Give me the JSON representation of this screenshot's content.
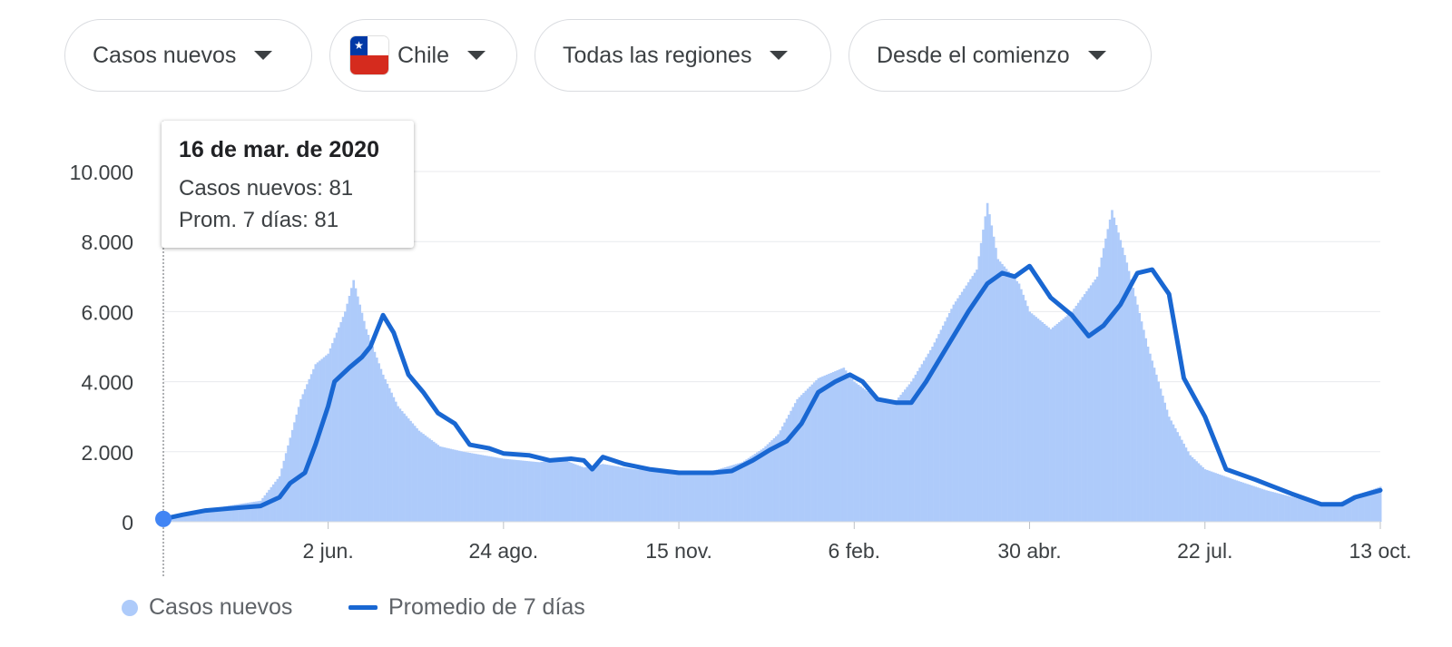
{
  "filters": {
    "metric": "Casos nuevos",
    "country": "Chile",
    "region": "Todas las regiones",
    "range": "Desde el comienzo"
  },
  "tooltip": {
    "date": "16 de mar. de 2020",
    "cases_label": "Casos nuevos",
    "cases_value": "81",
    "avg_label": "Prom. 7 días",
    "avg_value": "81"
  },
  "legend": {
    "cases": "Casos nuevos",
    "avg": "Promedio de 7 días"
  },
  "colors": {
    "bars": "#aecbfa",
    "line": "#1967d2",
    "marker": "#4285f4",
    "grid": "#e8eaed"
  },
  "chart_data": {
    "type": "bar",
    "title": "",
    "xlabel": "",
    "ylabel": "",
    "ylim": [
      0,
      10000
    ],
    "yticks": [
      0,
      2000,
      4000,
      6000,
      8000,
      10000
    ],
    "ytick_labels": [
      "0",
      "2.000",
      "4.000",
      "6.000",
      "8.000",
      "10.000"
    ],
    "xticks": [
      {
        "date": "2020-06-02",
        "label": "2 jun."
      },
      {
        "date": "2020-08-24",
        "label": "24 ago."
      },
      {
        "date": "2020-11-15",
        "label": "15 nov."
      },
      {
        "date": "2021-02-06",
        "label": "6 feb."
      },
      {
        "date": "2021-04-30",
        "label": "30 abr."
      },
      {
        "date": "2021-07-22",
        "label": "22 jul."
      },
      {
        "date": "2021-10-13",
        "label": "13 oct."
      }
    ],
    "x_start": "2020-03-16",
    "x_end": "2021-10-13",
    "highlight": {
      "date": "2020-03-16",
      "value": 81
    },
    "series": [
      {
        "name": "Casos nuevos",
        "type": "bar",
        "points": [
          [
            "2020-03-16",
            81
          ],
          [
            "2020-04-01",
            300
          ],
          [
            "2020-04-15",
            450
          ],
          [
            "2020-05-01",
            600
          ],
          [
            "2020-05-10",
            1300
          ],
          [
            "2020-05-20",
            3500
          ],
          [
            "2020-05-27",
            4500
          ],
          [
            "2020-06-02",
            4800
          ],
          [
            "2020-06-10",
            6000
          ],
          [
            "2020-06-14",
            6900
          ],
          [
            "2020-06-20",
            5500
          ],
          [
            "2020-06-28",
            4200
          ],
          [
            "2020-07-05",
            3300
          ],
          [
            "2020-07-15",
            2600
          ],
          [
            "2020-07-25",
            2150
          ],
          [
            "2020-08-05",
            2000
          ],
          [
            "2020-08-24",
            1800
          ],
          [
            "2020-09-10",
            1700
          ],
          [
            "2020-09-20",
            1800
          ],
          [
            "2020-10-01",
            1550
          ],
          [
            "2020-10-10",
            1650
          ],
          [
            "2020-10-25",
            1500
          ],
          [
            "2020-11-15",
            1400
          ],
          [
            "2020-12-01",
            1450
          ],
          [
            "2020-12-15",
            1700
          ],
          [
            "2020-12-25",
            2100
          ],
          [
            "2021-01-01",
            2500
          ],
          [
            "2021-01-10",
            3500
          ],
          [
            "2021-01-20",
            4100
          ],
          [
            "2021-02-01",
            4400
          ],
          [
            "2021-02-06",
            4000
          ],
          [
            "2021-02-15",
            3600
          ],
          [
            "2021-02-25",
            3400
          ],
          [
            "2021-03-05",
            4000
          ],
          [
            "2021-03-15",
            5000
          ],
          [
            "2021-03-25",
            6200
          ],
          [
            "2021-04-05",
            7200
          ],
          [
            "2021-04-10",
            9100
          ],
          [
            "2021-04-15",
            7500
          ],
          [
            "2021-04-25",
            6800
          ],
          [
            "2021-04-30",
            6000
          ],
          [
            "2021-05-10",
            5500
          ],
          [
            "2021-05-20",
            6000
          ],
          [
            "2021-06-01",
            7000
          ],
          [
            "2021-06-08",
            8900
          ],
          [
            "2021-06-15",
            7400
          ],
          [
            "2021-06-25",
            5000
          ],
          [
            "2021-07-05",
            3000
          ],
          [
            "2021-07-15",
            1900
          ],
          [
            "2021-07-22",
            1500
          ],
          [
            "2021-08-05",
            1200
          ],
          [
            "2021-08-20",
            900
          ],
          [
            "2021-09-05",
            650
          ],
          [
            "2021-09-20",
            450
          ],
          [
            "2021-10-01",
            750
          ],
          [
            "2021-10-13",
            1000
          ]
        ]
      },
      {
        "name": "Promedio de 7 días",
        "type": "line",
        "points": [
          [
            "2020-03-16",
            81
          ],
          [
            "2020-03-25",
            200
          ],
          [
            "2020-04-05",
            320
          ],
          [
            "2020-04-20",
            400
          ],
          [
            "2020-05-01",
            450
          ],
          [
            "2020-05-10",
            700
          ],
          [
            "2020-05-15",
            1100
          ],
          [
            "2020-05-22",
            1400
          ],
          [
            "2020-05-27",
            2200
          ],
          [
            "2020-06-02",
            3300
          ],
          [
            "2020-06-05",
            4000
          ],
          [
            "2020-06-12",
            4400
          ],
          [
            "2020-06-18",
            4700
          ],
          [
            "2020-06-22",
            5000
          ],
          [
            "2020-06-28",
            5900
          ],
          [
            "2020-07-03",
            5400
          ],
          [
            "2020-07-10",
            4200
          ],
          [
            "2020-07-17",
            3700
          ],
          [
            "2020-07-24",
            3100
          ],
          [
            "2020-08-01",
            2800
          ],
          [
            "2020-08-08",
            2200
          ],
          [
            "2020-08-17",
            2100
          ],
          [
            "2020-08-24",
            1950
          ],
          [
            "2020-09-05",
            1900
          ],
          [
            "2020-09-15",
            1750
          ],
          [
            "2020-09-25",
            1800
          ],
          [
            "2020-10-01",
            1750
          ],
          [
            "2020-10-05",
            1500
          ],
          [
            "2020-10-10",
            1850
          ],
          [
            "2020-10-20",
            1650
          ],
          [
            "2020-11-01",
            1500
          ],
          [
            "2020-11-15",
            1400
          ],
          [
            "2020-12-01",
            1400
          ],
          [
            "2020-12-10",
            1450
          ],
          [
            "2020-12-20",
            1750
          ],
          [
            "2020-12-28",
            2050
          ],
          [
            "2021-01-05",
            2300
          ],
          [
            "2021-01-12",
            2800
          ],
          [
            "2021-01-20",
            3700
          ],
          [
            "2021-01-28",
            4000
          ],
          [
            "2021-02-04",
            4200
          ],
          [
            "2021-02-10",
            4000
          ],
          [
            "2021-02-17",
            3500
          ],
          [
            "2021-02-26",
            3400
          ],
          [
            "2021-03-05",
            3400
          ],
          [
            "2021-03-12",
            4000
          ],
          [
            "2021-03-22",
            5000
          ],
          [
            "2021-04-01",
            6000
          ],
          [
            "2021-04-10",
            6800
          ],
          [
            "2021-04-17",
            7100
          ],
          [
            "2021-04-23",
            7000
          ],
          [
            "2021-04-30",
            7300
          ],
          [
            "2021-05-10",
            6400
          ],
          [
            "2021-05-20",
            5900
          ],
          [
            "2021-05-28",
            5300
          ],
          [
            "2021-06-04",
            5600
          ],
          [
            "2021-06-12",
            6200
          ],
          [
            "2021-06-20",
            7100
          ],
          [
            "2021-06-27",
            7200
          ],
          [
            "2021-07-05",
            6500
          ],
          [
            "2021-07-12",
            4100
          ],
          [
            "2021-07-22",
            3000
          ],
          [
            "2021-08-01",
            1500
          ],
          [
            "2021-08-15",
            1200
          ],
          [
            "2021-09-01",
            800
          ],
          [
            "2021-09-15",
            500
          ],
          [
            "2021-09-25",
            500
          ],
          [
            "2021-10-01",
            700
          ],
          [
            "2021-10-13",
            900
          ]
        ]
      }
    ]
  }
}
